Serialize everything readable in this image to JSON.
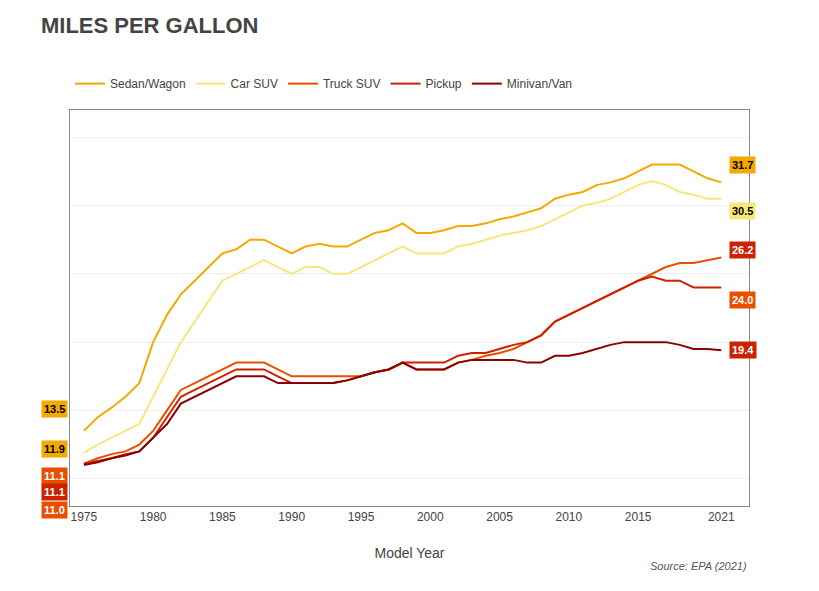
{
  "chart_data": {
    "type": "line",
    "title": "MILES PER GALLON",
    "x_label": "Model Year",
    "x": [
      1975,
      1976,
      1977,
      1978,
      1979,
      1980,
      1981,
      1982,
      1983,
      1984,
      1985,
      1986,
      1987,
      1988,
      1989,
      1990,
      1991,
      1992,
      1993,
      1994,
      1995,
      1996,
      1997,
      1998,
      1999,
      2000,
      2001,
      2002,
      2003,
      2004,
      2005,
      2006,
      2007,
      2008,
      2009,
      2010,
      2011,
      2012,
      2013,
      2014,
      2015,
      2016,
      2017,
      2018,
      2019,
      2020,
      2021
    ],
    "series": [
      {
        "name": "Sedan/Wagon",
        "color": "#F5A800",
        "values": [
          13.5,
          14.5,
          15.2,
          16.0,
          17.0,
          20.0,
          22.0,
          23.5,
          24.5,
          25.5,
          26.5,
          26.8,
          27.5,
          27.5,
          27.0,
          26.5,
          27.0,
          27.2,
          27.0,
          27.0,
          27.5,
          28.0,
          28.2,
          28.7,
          28.0,
          28.0,
          28.2,
          28.5,
          28.5,
          28.7,
          29.0,
          29.2,
          29.5,
          29.8,
          30.5,
          30.8,
          31.0,
          31.5,
          31.7,
          32.0,
          32.5,
          33.0,
          33.0,
          33.0,
          32.5,
          32.0,
          31.7
        ]
      },
      {
        "name": "Car SUV",
        "color": "#F5E87A",
        "values": [
          11.9,
          12.5,
          13.0,
          13.5,
          14.0,
          16.0,
          18.0,
          20.0,
          21.5,
          23.0,
          24.5,
          25.0,
          25.5,
          26.0,
          25.5,
          25.0,
          25.5,
          25.5,
          25.0,
          25.0,
          25.5,
          26.0,
          26.5,
          27.0,
          26.5,
          26.5,
          26.5,
          27.0,
          27.2,
          27.5,
          27.8,
          28.0,
          28.2,
          28.5,
          29.0,
          29.5,
          30.0,
          30.2,
          30.5,
          31.0,
          31.5,
          31.8,
          31.5,
          31.0,
          30.8,
          30.5,
          30.5
        ]
      },
      {
        "name": "Truck SUV",
        "color": "#E85000",
        "values": [
          11.1,
          11.5,
          11.8,
          12.0,
          12.5,
          13.5,
          15.0,
          16.5,
          17.0,
          17.5,
          18.0,
          18.5,
          18.5,
          18.5,
          18.0,
          17.5,
          17.5,
          17.5,
          17.5,
          17.5,
          17.5,
          17.8,
          18.0,
          18.5,
          18.0,
          18.0,
          18.0,
          18.5,
          18.7,
          19.0,
          19.2,
          19.5,
          20.0,
          20.5,
          21.5,
          22.0,
          22.5,
          23.0,
          23.5,
          24.0,
          24.5,
          25.0,
          25.5,
          25.8,
          25.8,
          26.0,
          26.2
        ]
      },
      {
        "name": "Pickup",
        "color": "#CC2200",
        "values": [
          11.1,
          11.3,
          11.5,
          11.8,
          12.0,
          13.0,
          14.5,
          16.0,
          16.5,
          17.0,
          17.5,
          18.0,
          18.0,
          18.0,
          17.5,
          17.0,
          17.0,
          17.0,
          17.0,
          17.2,
          17.5,
          17.8,
          18.0,
          18.5,
          18.5,
          18.5,
          18.5,
          19.0,
          19.2,
          19.2,
          19.5,
          19.8,
          20.0,
          20.5,
          21.5,
          22.0,
          22.5,
          23.0,
          23.5,
          24.0,
          24.5,
          24.8,
          24.5,
          24.5,
          24.0,
          24.0,
          24.0
        ]
      },
      {
        "name": "Minivan/Van",
        "color": "#8B0000",
        "values": [
          11.0,
          11.2,
          11.5,
          11.7,
          12.0,
          13.0,
          14.0,
          15.5,
          16.0,
          16.5,
          17.0,
          17.5,
          17.5,
          17.5,
          17.0,
          17.0,
          17.0,
          17.0,
          17.0,
          17.2,
          17.5,
          17.8,
          18.0,
          18.5,
          18.0,
          18.0,
          18.0,
          18.5,
          18.7,
          18.7,
          18.7,
          18.7,
          18.5,
          18.5,
          19.0,
          19.0,
          19.2,
          19.5,
          19.8,
          20.0,
          20.0,
          20.0,
          20.0,
          19.8,
          19.5,
          19.5,
          19.4
        ]
      }
    ],
    "xlim": [
      1974,
      2023
    ],
    "xticks": [
      1975,
      1980,
      1985,
      1990,
      1995,
      2000,
      2005,
      2010,
      2015,
      2021
    ],
    "ylim": [
      8,
      37
    ],
    "yticks": [
      10,
      15,
      20,
      25,
      30,
      35
    ],
    "tick_labels": "x",
    "grid": true,
    "legend": "top",
    "annotations": [
      {
        "text": "13.5",
        "x": 1975,
        "y": 13.5,
        "color": "#F5A800",
        "text_color": "#000000"
      },
      {
        "text": "11.9",
        "x": 1975,
        "y": 11.9,
        "color": "#F5A800",
        "text_color": "#000000"
      },
      {
        "text": "11.1",
        "x": 1975,
        "y": 11.1,
        "color": "#E85000",
        "text_color": "#ffffff"
      },
      {
        "text": "11.1",
        "x": 1975,
        "y": 11.1,
        "color": "#CC2200",
        "text_color": "#ffffff"
      },
      {
        "text": "11.0",
        "x": 1975,
        "y": 11.0,
        "color": "#E85000",
        "text_color": "#ffffff"
      },
      {
        "text": "31.7",
        "x": 2021,
        "y": 31.7,
        "color": "#F5A800",
        "text_color": "#000000"
      },
      {
        "text": "30.5",
        "x": 2021,
        "y": 30.5,
        "color": "#F5E87A",
        "text_color": "#000000"
      },
      {
        "text": "26.2",
        "x": 2021,
        "y": 26.2,
        "color": "#CC2200",
        "text_color": "#ffffff"
      },
      {
        "text": "24.0",
        "x": 2021,
        "y": 24.0,
        "color": "#E85000",
        "text_color": "#ffffff"
      },
      {
        "text": "19.4",
        "x": 2021,
        "y": 19.4,
        "color": "#CC2200",
        "text_color": "#ffffff"
      },
      {
        "text": "Source: EPA (2021)"
      }
    ]
  }
}
